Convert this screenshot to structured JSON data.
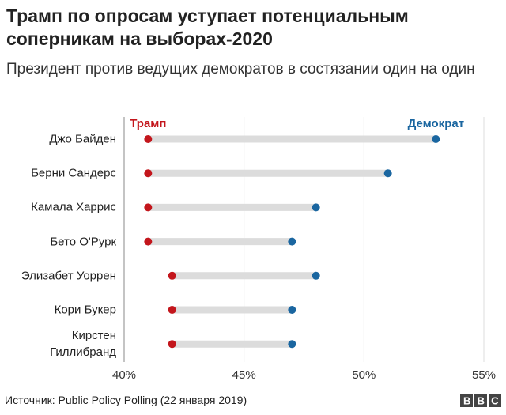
{
  "chart_data": {
    "type": "dumbbell",
    "title": "Трамп по опросам уступает потенциальным соперникам на выборах-2020",
    "subtitle": "Президент против ведущих демократов в состязании один на один",
    "categories": [
      "Джо Байден",
      "Берни Сандерс",
      "Камала Харрис",
      "Бето О'Рурк",
      "Элизабет Уоррен",
      "Кори Букер",
      "Кирстен Гиллибранд"
    ],
    "series": [
      {
        "name": "Трамп",
        "color": "#c3161c",
        "values": [
          41,
          41,
          41,
          41,
          42,
          42,
          42
        ]
      },
      {
        "name": "Демократ",
        "color": "#1a66a0",
        "values": [
          53,
          51,
          48,
          47,
          48,
          47,
          47
        ]
      }
    ],
    "xlim": [
      40,
      55
    ],
    "xticks": [
      {
        "value": 40,
        "label": "40%"
      },
      {
        "value": 45,
        "label": "45%"
      },
      {
        "value": 50,
        "label": "50%"
      },
      {
        "value": 55,
        "label": "55%"
      }
    ],
    "grid": true,
    "source": "Источник: Public Policy Polling (22 января 2019)",
    "logo": "BBC"
  }
}
